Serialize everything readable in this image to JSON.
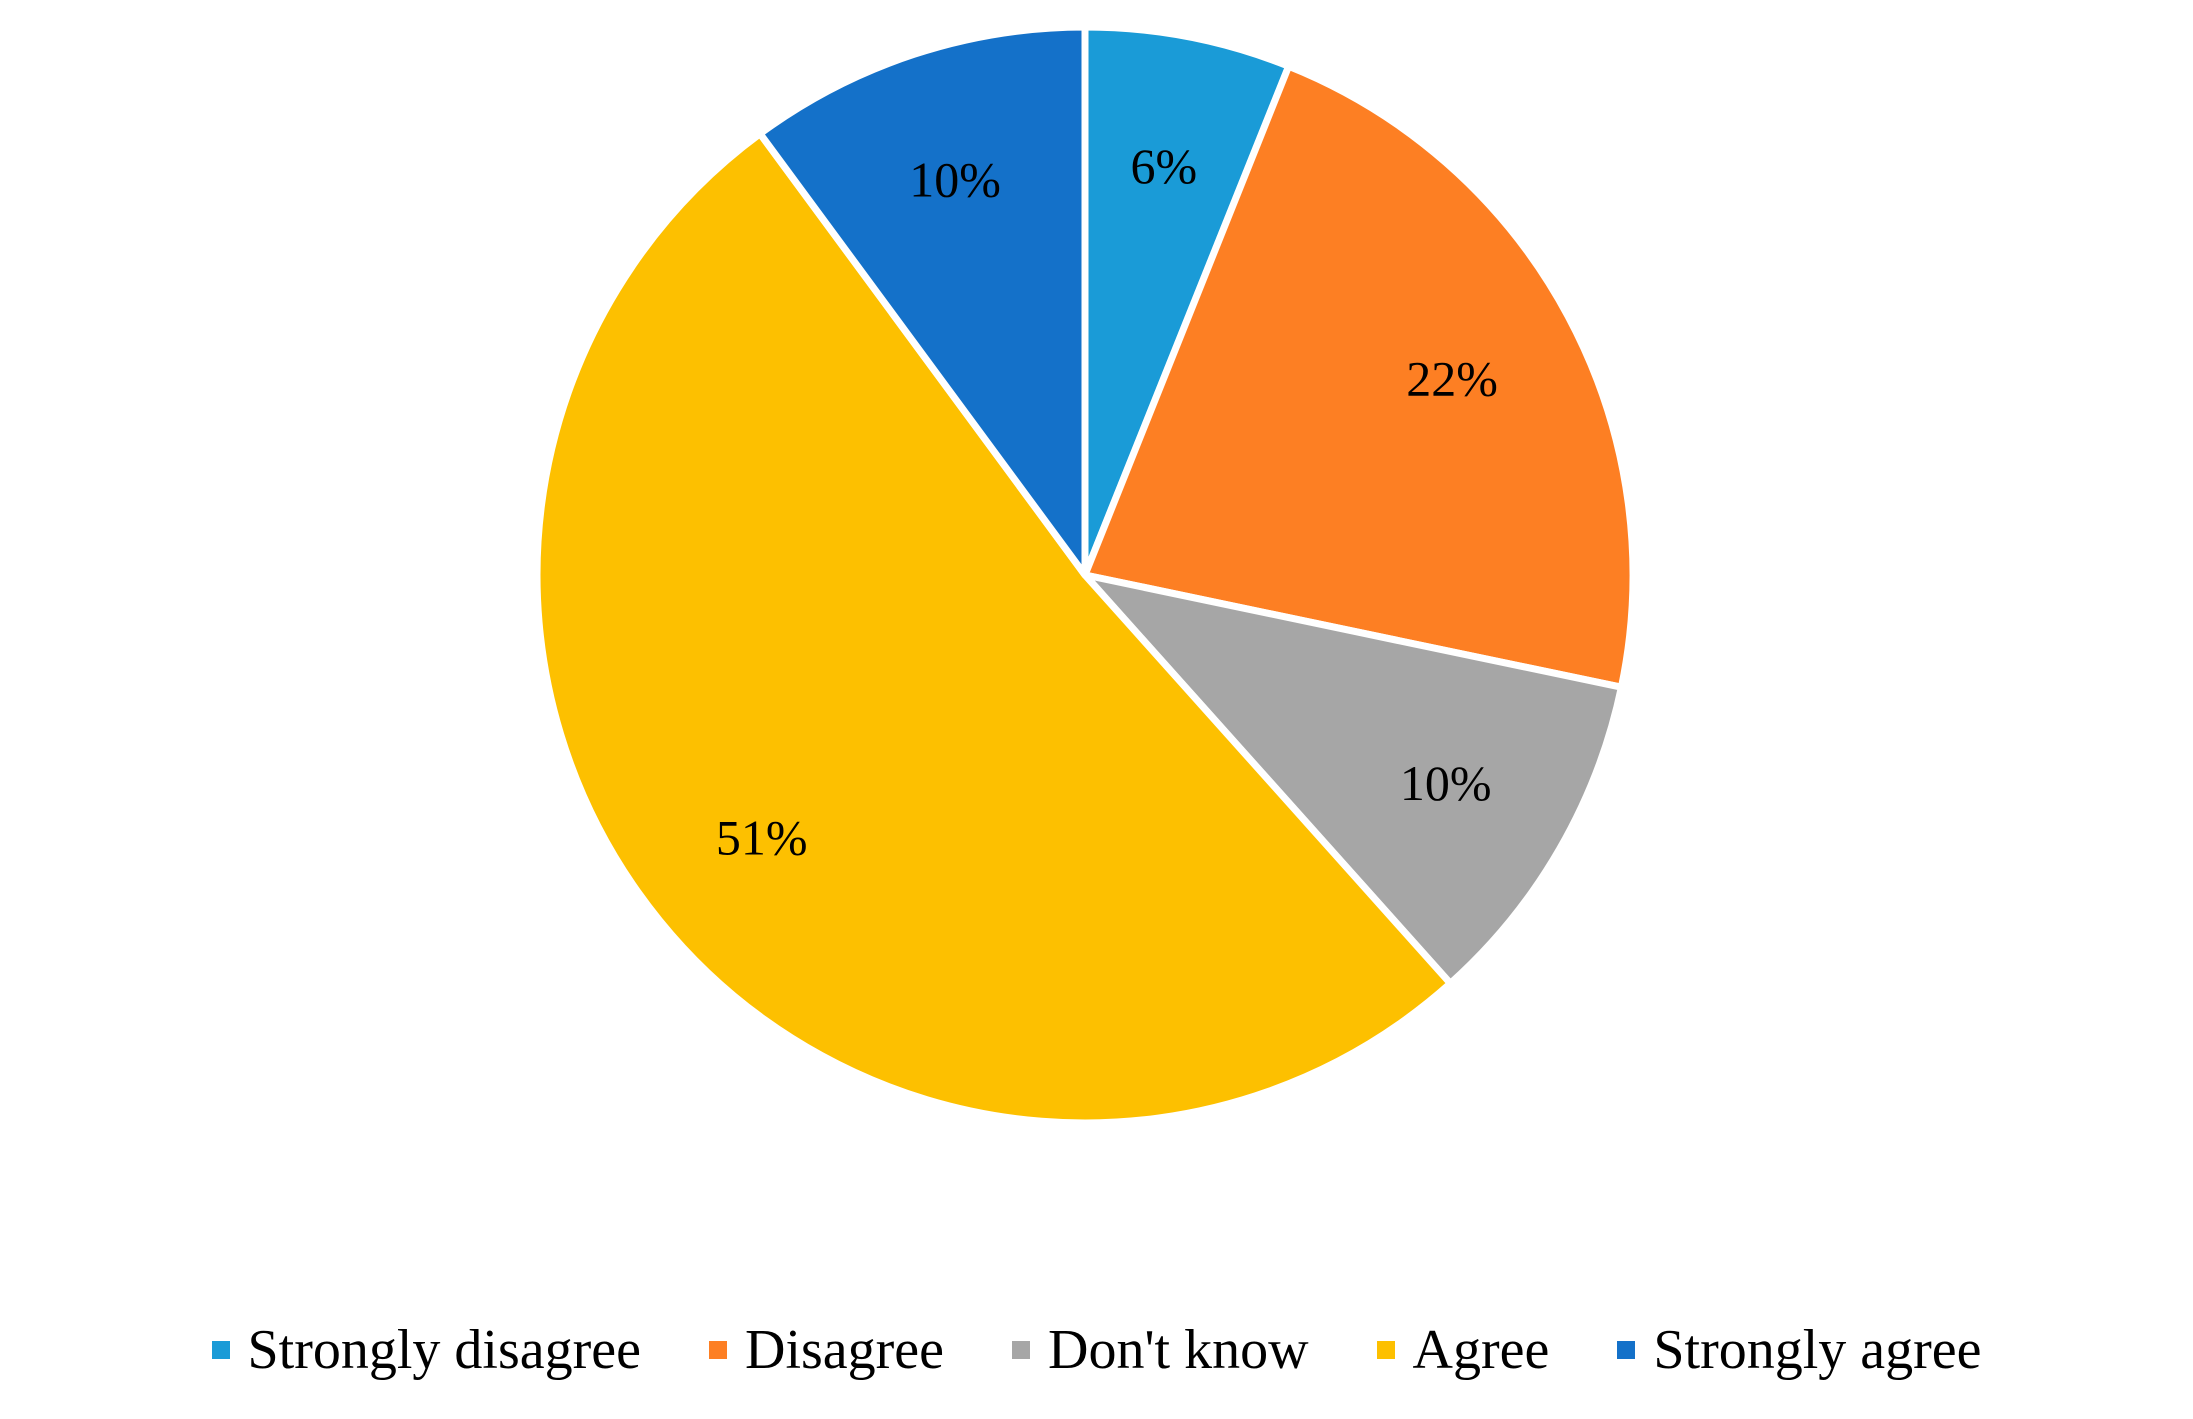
{
  "chart_data": {
    "type": "pie",
    "title": "",
    "categories": [
      "Strongly disagree",
      "Disagree",
      "Don't know",
      "Agree",
      "Strongly agree"
    ],
    "values": [
      6,
      22,
      10,
      51,
      10
    ],
    "data_labels": [
      "6%",
      "22%",
      "10%",
      "51%",
      "10%"
    ],
    "colors": [
      "#1a9bd7",
      "#fd7f23",
      "#a6a6a6",
      "#fdc000",
      "#1471c9"
    ],
    "legend_position": "bottom",
    "start_angle": "12 o'clock",
    "direction": "clockwise"
  },
  "legend": {
    "items": [
      {
        "label": "Strongly disagree",
        "color": "#1a9bd7"
      },
      {
        "label": "Disagree",
        "color": "#fd7f23"
      },
      {
        "label": "Don't know",
        "color": "#a6a6a6"
      },
      {
        "label": "Agree",
        "color": "#fdc000"
      },
      {
        "label": "Strongly agree",
        "color": "#1471c9"
      }
    ]
  }
}
